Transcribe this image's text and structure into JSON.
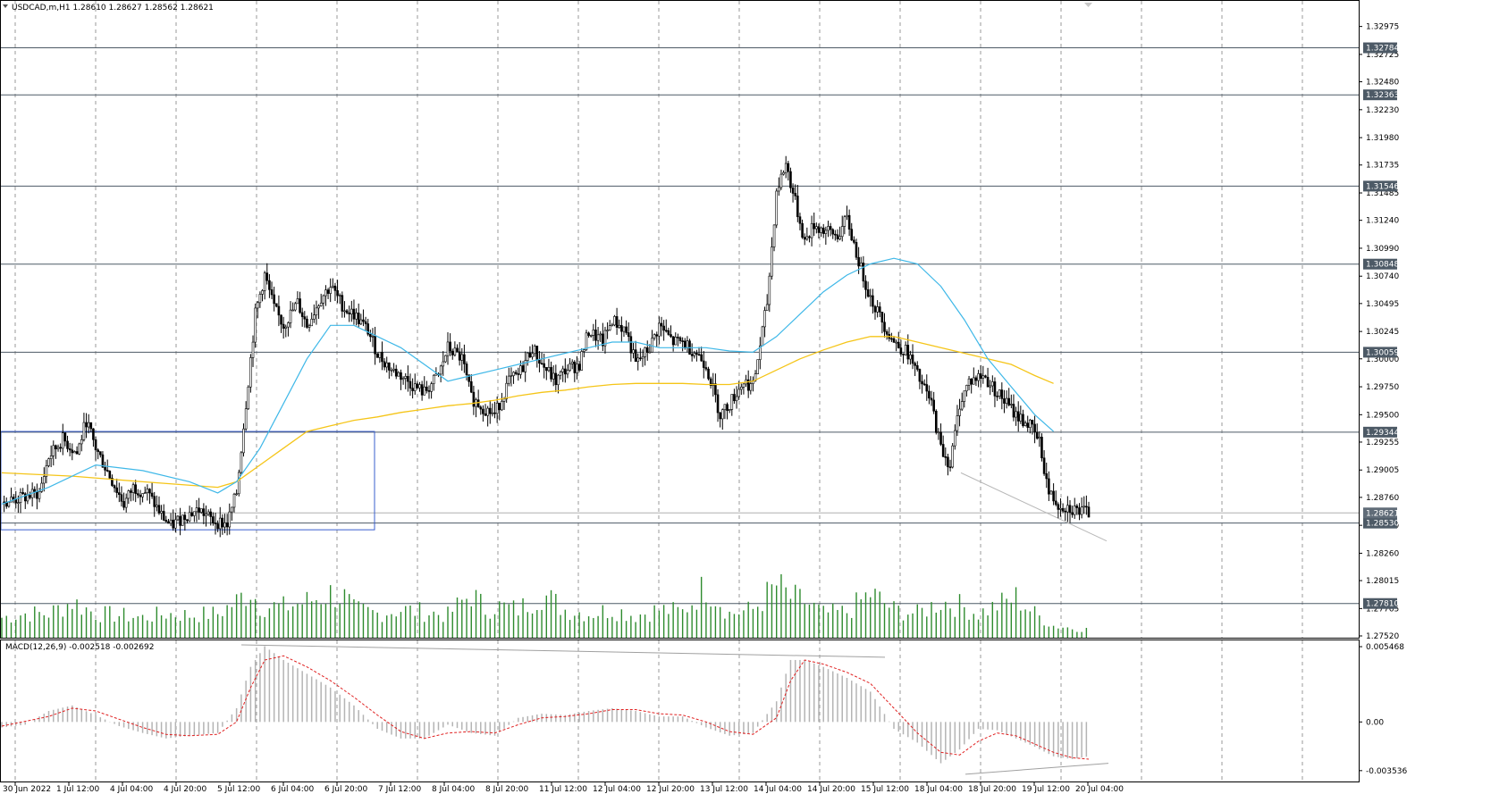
{
  "header": {
    "symbol_text": "USDCAD,m,H1  1.28610 1.28627 1.28562 1.28621"
  },
  "macd_header": {
    "text": "MACD(12,26,9) -0.002518 -0.002692"
  },
  "colors": {
    "candle": "#000000",
    "ma_fast": "#3fb8e8",
    "ma_slow": "#f5c518",
    "volume": "#2e8b2e",
    "level": "#4d5a66",
    "box": "#3a5fcd",
    "macd_hist": "#b4b4b4",
    "macd_signal": "#e02020",
    "grid": "#9a9a9a"
  },
  "price_axis": {
    "min": 1.2752,
    "max": 1.331,
    "ticks": [
      "1.32975",
      "1.32725",
      "1.32480",
      "1.32230",
      "1.31980",
      "1.31735",
      "1.31485",
      "1.31240",
      "1.30990",
      "1.30740",
      "1.30495",
      "1.30245",
      "1.30000",
      "1.29750",
      "1.29500",
      "1.29255",
      "1.29005",
      "1.28760",
      "1.28510",
      "1.28260",
      "1.28015",
      "1.27765",
      "1.27520"
    ]
  },
  "macd_axis": {
    "max": 0.005468,
    "min": -0.003536,
    "ticks": [
      "0.005468",
      "0.00",
      "-0.003536"
    ]
  },
  "levels": [
    "1.32784",
    "1.32363",
    "1.31546",
    "1.30848",
    "1.30059",
    "1.29344",
    "1.28530",
    "1.27810"
  ],
  "current_price": "1.28621",
  "time_axis": [
    "30 Jun 2022",
    "1 Jul 12:00",
    "4 Jul 04:00",
    "4 Jul 20:00",
    "5 Jul 12:00",
    "6 Jul 04:00",
    "6 Jul 20:00",
    "7 Jul 12:00",
    "8 Jul 04:00",
    "8 Jul 20:00",
    "11 Jul 12:00",
    "12 Jul 04:00",
    "12 Jul 20:00",
    "13 Jul 12:00",
    "14 Jul 04:00",
    "14 Jul 20:00",
    "15 Jul 12:00",
    "18 Jul 04:00",
    "18 Jul 20:00",
    "19 Jul 12:00",
    "20 Jul 04:00"
  ],
  "chart_data": {
    "type": "candlestick",
    "title": "USDCAD,m,H1",
    "close_path": [
      [
        0,
        1.2872
      ],
      [
        8,
        1.2875
      ],
      [
        16,
        1.288
      ],
      [
        20,
        1.2912
      ],
      [
        26,
        1.2928
      ],
      [
        32,
        1.2915
      ],
      [
        36,
        1.2945
      ],
      [
        40,
        1.292
      ],
      [
        46,
        1.2895
      ],
      [
        52,
        1.287
      ],
      [
        56,
        1.2885
      ],
      [
        62,
        1.288
      ],
      [
        68,
        1.286
      ],
      [
        72,
        1.285
      ],
      [
        78,
        1.286
      ],
      [
        84,
        1.2865
      ],
      [
        90,
        1.2855
      ],
      [
        96,
        1.2852
      ],
      [
        100,
        1.288
      ],
      [
        104,
        1.296
      ],
      [
        108,
        1.304
      ],
      [
        112,
        1.3075
      ],
      [
        116,
        1.3045
      ],
      [
        120,
        1.303
      ],
      [
        126,
        1.305
      ],
      [
        130,
        1.303
      ],
      [
        136,
        1.3055
      ],
      [
        140,
        1.3065
      ],
      [
        146,
        1.3045
      ],
      [
        150,
        1.304
      ],
      [
        156,
        1.3025
      ],
      [
        160,
        1.3005
      ],
      [
        166,
        1.299
      ],
      [
        170,
        1.2985
      ],
      [
        176,
        1.2975
      ],
      [
        180,
        1.297
      ],
      [
        186,
        1.2985
      ],
      [
        190,
        1.301
      ],
      [
        196,
        1.3
      ],
      [
        200,
        1.2965
      ],
      [
        206,
        1.2955
      ],
      [
        210,
        1.295
      ],
      [
        216,
        1.298
      ],
      [
        220,
        1.2985
      ],
      [
        226,
        1.301
      ],
      [
        230,
        1.2995
      ],
      [
        236,
        1.298
      ],
      [
        240,
        1.299
      ],
      [
        246,
        1.2995
      ],
      [
        250,
        1.3025
      ],
      [
        256,
        1.3015
      ],
      [
        260,
        1.3035
      ],
      [
        266,
        1.3025
      ],
      [
        270,
        1.2995
      ],
      [
        276,
        1.301
      ],
      [
        280,
        1.303
      ],
      [
        286,
        1.3015
      ],
      [
        290,
        1.3015
      ],
      [
        296,
        1.3005
      ],
      [
        300,
        1.2995
      ],
      [
        306,
        1.295
      ],
      [
        310,
        1.296
      ],
      [
        316,
        1.298
      ],
      [
        320,
        1.2975
      ],
      [
        326,
        1.305
      ],
      [
        330,
        1.315
      ],
      [
        334,
        1.3175
      ],
      [
        338,
        1.314
      ],
      [
        342,
        1.3105
      ],
      [
        346,
        1.312
      ],
      [
        350,
        1.3115
      ],
      [
        356,
        1.311
      ],
      [
        360,
        1.3125
      ],
      [
        366,
        1.308
      ],
      [
        370,
        1.3055
      ],
      [
        376,
        1.303
      ],
      [
        380,
        1.3015
      ],
      [
        386,
        1.3005
      ],
      [
        390,
        1.2985
      ],
      [
        396,
        1.296
      ],
      [
        400,
        1.292
      ],
      [
        404,
        1.2905
      ],
      [
        408,
        1.296
      ],
      [
        412,
        1.298
      ],
      [
        418,
        1.2985
      ],
      [
        422,
        1.2975
      ],
      [
        428,
        1.296
      ],
      [
        432,
        1.295
      ],
      [
        438,
        1.294
      ],
      [
        442,
        1.2925
      ],
      [
        446,
        1.288
      ],
      [
        450,
        1.287
      ],
      [
        456,
        1.2866
      ],
      [
        460,
        1.2863
      ],
      [
        463,
        1.2862
      ]
    ],
    "ma_fast": [
      [
        0,
        1.287
      ],
      [
        20,
        1.2885
      ],
      [
        40,
        1.2905
      ],
      [
        60,
        1.29
      ],
      [
        80,
        1.289
      ],
      [
        92,
        1.288
      ],
      [
        100,
        1.289
      ],
      [
        110,
        1.292
      ],
      [
        120,
        1.296
      ],
      [
        130,
        1.3
      ],
      [
        140,
        1.303
      ],
      [
        150,
        1.303
      ],
      [
        160,
        1.302
      ],
      [
        170,
        1.301
      ],
      [
        180,
        1.2995
      ],
      [
        190,
        1.298
      ],
      [
        200,
        1.2985
      ],
      [
        210,
        1.299
      ],
      [
        220,
        1.2995
      ],
      [
        230,
        1.3
      ],
      [
        240,
        1.3005
      ],
      [
        250,
        1.301
      ],
      [
        260,
        1.3015
      ],
      [
        270,
        1.3015
      ],
      [
        280,
        1.301
      ],
      [
        290,
        1.301
      ],
      [
        300,
        1.301
      ],
      [
        310,
        1.3007
      ],
      [
        320,
        1.3006
      ],
      [
        330,
        1.302
      ],
      [
        340,
        1.304
      ],
      [
        350,
        1.306
      ],
      [
        360,
        1.3075
      ],
      [
        370,
        1.3085
      ],
      [
        380,
        1.309
      ],
      [
        390,
        1.3085
      ],
      [
        400,
        1.3065
      ],
      [
        410,
        1.3035
      ],
      [
        420,
        1.3
      ],
      [
        430,
        1.2975
      ],
      [
        440,
        1.295
      ],
      [
        448,
        1.2935
      ]
    ],
    "ma_slow": [
      [
        0,
        1.2898
      ],
      [
        30,
        1.2895
      ],
      [
        60,
        1.289
      ],
      [
        92,
        1.2885
      ],
      [
        100,
        1.289
      ],
      [
        110,
        1.2905
      ],
      [
        120,
        1.292
      ],
      [
        130,
        1.2935
      ],
      [
        140,
        1.294
      ],
      [
        150,
        1.2945
      ],
      [
        160,
        1.2948
      ],
      [
        170,
        1.2952
      ],
      [
        180,
        1.2955
      ],
      [
        190,
        1.2958
      ],
      [
        200,
        1.296
      ],
      [
        210,
        1.2963
      ],
      [
        220,
        1.2967
      ],
      [
        230,
        1.297
      ],
      [
        240,
        1.2972
      ],
      [
        250,
        1.2975
      ],
      [
        260,
        1.2977
      ],
      [
        270,
        1.2978
      ],
      [
        280,
        1.2978
      ],
      [
        290,
        1.2978
      ],
      [
        300,
        1.2977
      ],
      [
        310,
        1.2977
      ],
      [
        320,
        1.298
      ],
      [
        330,
        1.299
      ],
      [
        340,
        1.3
      ],
      [
        350,
        1.3008
      ],
      [
        360,
        1.3015
      ],
      [
        370,
        1.302
      ],
      [
        380,
        1.302
      ],
      [
        390,
        1.3015
      ],
      [
        400,
        1.301
      ],
      [
        410,
        1.3005
      ],
      [
        420,
        1.3
      ],
      [
        430,
        1.2995
      ],
      [
        440,
        1.2985
      ],
      [
        448,
        1.2978
      ]
    ],
    "macd_hist_env": [
      [
        0,
        -0.0004
      ],
      [
        10,
        -0.0002
      ],
      [
        20,
        0.0008
      ],
      [
        30,
        0.0012
      ],
      [
        40,
        0.0005
      ],
      [
        50,
        -0.0003
      ],
      [
        60,
        -0.0008
      ],
      [
        70,
        -0.0012
      ],
      [
        80,
        -0.001
      ],
      [
        92,
        -0.0008
      ],
      [
        100,
        0.001
      ],
      [
        106,
        0.004
      ],
      [
        112,
        0.0055
      ],
      [
        120,
        0.0045
      ],
      [
        130,
        0.0035
      ],
      [
        140,
        0.0025
      ],
      [
        150,
        0.0012
      ],
      [
        160,
        -0.0005
      ],
      [
        170,
        -0.0012
      ],
      [
        180,
        -0.0012
      ],
      [
        190,
        -0.0002
      ],
      [
        200,
        -0.0008
      ],
      [
        210,
        -0.001
      ],
      [
        220,
        0.0003
      ],
      [
        230,
        0.0006
      ],
      [
        240,
        0.0005
      ],
      [
        250,
        0.0008
      ],
      [
        260,
        0.001
      ],
      [
        270,
        0.0008
      ],
      [
        280,
        0.0004
      ],
      [
        290,
        0.0004
      ],
      [
        300,
        -0.0004
      ],
      [
        310,
        -0.001
      ],
      [
        320,
        -0.0008
      ],
      [
        330,
        0.0015
      ],
      [
        336,
        0.0045
      ],
      [
        342,
        0.0045
      ],
      [
        350,
        0.004
      ],
      [
        360,
        0.0032
      ],
      [
        370,
        0.0022
      ],
      [
        380,
        -0.0005
      ],
      [
        390,
        -0.0015
      ],
      [
        400,
        -0.003
      ],
      [
        408,
        -0.002
      ],
      [
        416,
        -0.0005
      ],
      [
        424,
        -0.0006
      ],
      [
        432,
        -0.0012
      ],
      [
        440,
        -0.0018
      ],
      [
        448,
        -0.0025
      ],
      [
        456,
        -0.0027
      ],
      [
        463,
        -0.0025
      ]
    ],
    "macd_signal": [
      [
        0,
        -0.0003
      ],
      [
        20,
        0.0004
      ],
      [
        30,
        0.001
      ],
      [
        40,
        0.0008
      ],
      [
        50,
        0.0002
      ],
      [
        60,
        -0.0004
      ],
      [
        70,
        -0.0009
      ],
      [
        80,
        -0.001
      ],
      [
        92,
        -0.0009
      ],
      [
        100,
        0.0
      ],
      [
        106,
        0.0025
      ],
      [
        112,
        0.0045
      ],
      [
        120,
        0.0048
      ],
      [
        130,
        0.004
      ],
      [
        140,
        0.003
      ],
      [
        150,
        0.0018
      ],
      [
        160,
        0.0005
      ],
      [
        170,
        -0.0007
      ],
      [
        180,
        -0.0012
      ],
      [
        190,
        -0.0008
      ],
      [
        200,
        -0.0007
      ],
      [
        210,
        -0.0008
      ],
      [
        220,
        -0.0002
      ],
      [
        230,
        0.0003
      ],
      [
        240,
        0.0004
      ],
      [
        250,
        0.0006
      ],
      [
        260,
        0.0009
      ],
      [
        270,
        0.0009
      ],
      [
        280,
        0.0006
      ],
      [
        290,
        0.0005
      ],
      [
        300,
        0.0
      ],
      [
        310,
        -0.0007
      ],
      [
        320,
        -0.0009
      ],
      [
        330,
        0.0003
      ],
      [
        336,
        0.003
      ],
      [
        342,
        0.0045
      ],
      [
        350,
        0.0042
      ],
      [
        360,
        0.0036
      ],
      [
        370,
        0.0028
      ],
      [
        380,
        0.001
      ],
      [
        390,
        -0.0008
      ],
      [
        400,
        -0.0022
      ],
      [
        408,
        -0.0024
      ],
      [
        416,
        -0.0014
      ],
      [
        424,
        -0.0008
      ],
      [
        432,
        -0.001
      ],
      [
        440,
        -0.0016
      ],
      [
        448,
        -0.0022
      ],
      [
        456,
        -0.0026
      ],
      [
        463,
        -0.0027
      ]
    ],
    "volume_env": [
      [
        0,
        25
      ],
      [
        10,
        30
      ],
      [
        20,
        30
      ],
      [
        30,
        45
      ],
      [
        40,
        30
      ],
      [
        50,
        28
      ],
      [
        60,
        25
      ],
      [
        70,
        30
      ],
      [
        80,
        28
      ],
      [
        92,
        30
      ],
      [
        100,
        45
      ],
      [
        106,
        60
      ],
      [
        110,
        40
      ],
      [
        120,
        38
      ],
      [
        130,
        45
      ],
      [
        140,
        55
      ],
      [
        146,
        50
      ],
      [
        150,
        35
      ],
      [
        160,
        30
      ],
      [
        170,
        35
      ],
      [
        180,
        32
      ],
      [
        190,
        28
      ],
      [
        200,
        55
      ],
      [
        206,
        35
      ],
      [
        210,
        40
      ],
      [
        220,
        35
      ],
      [
        230,
        55
      ],
      [
        240,
        35
      ],
      [
        250,
        30
      ],
      [
        260,
        35
      ],
      [
        270,
        28
      ],
      [
        280,
        35
      ],
      [
        290,
        32
      ],
      [
        300,
        65
      ],
      [
        306,
        45
      ],
      [
        310,
        30
      ],
      [
        320,
        35
      ],
      [
        330,
        65
      ],
      [
        336,
        50
      ],
      [
        342,
        45
      ],
      [
        350,
        30
      ],
      [
        360,
        32
      ],
      [
        370,
        55
      ],
      [
        380,
        35
      ],
      [
        390,
        30
      ],
      [
        400,
        45
      ],
      [
        408,
        40
      ],
      [
        416,
        30
      ],
      [
        424,
        40
      ],
      [
        432,
        50
      ],
      [
        440,
        30
      ],
      [
        448,
        15
      ],
      [
        456,
        12
      ],
      [
        463,
        10
      ]
    ]
  }
}
